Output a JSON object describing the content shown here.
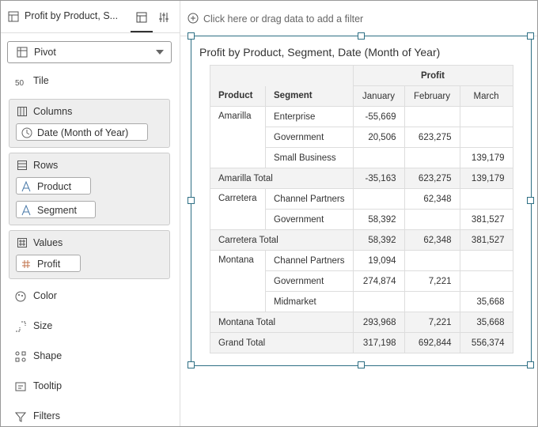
{
  "panel": {
    "tab_title": "Profit by Product, S...",
    "viz_type": "Pivot",
    "tile": "Tile",
    "columns": {
      "label": "Columns",
      "items": [
        "Date (Month of Year)"
      ]
    },
    "rows": {
      "label": "Rows",
      "items": [
        "Product",
        "Segment"
      ]
    },
    "values": {
      "label": "Values",
      "items": [
        "Profit"
      ]
    },
    "other": [
      "Color",
      "Size",
      "Shape",
      "Tooltip",
      "Filters"
    ]
  },
  "filter_bar": "Click here or drag data to add a filter",
  "pivot": {
    "title": "Profit by Product, Segment, Date (Month of Year)",
    "measure": "Profit",
    "row_headers": [
      "Product",
      "Segment"
    ],
    "months": [
      "January",
      "February",
      "March"
    ],
    "groups": [
      {
        "product": "Amarilla",
        "rows": [
          {
            "segment": "Enterprise",
            "values": [
              "-55,669",
              null,
              null
            ]
          },
          {
            "segment": "Government",
            "values": [
              "20,506",
              "623,275",
              null
            ]
          },
          {
            "segment": "Small Business",
            "values": [
              null,
              null,
              "139,179"
            ]
          }
        ],
        "total": {
          "label": "Amarilla Total",
          "values": [
            "-35,163",
            "623,275",
            "139,179"
          ]
        }
      },
      {
        "product": "Carretera",
        "rows": [
          {
            "segment": "Channel Partners",
            "values": [
              null,
              "62,348",
              null
            ]
          },
          {
            "segment": "Government",
            "values": [
              "58,392",
              null,
              "381,527"
            ]
          }
        ],
        "total": {
          "label": "Carretera Total",
          "values": [
            "58,392",
            "62,348",
            "381,527"
          ]
        }
      },
      {
        "product": "Montana",
        "rows": [
          {
            "segment": "Channel Partners",
            "values": [
              "19,094",
              null,
              null
            ]
          },
          {
            "segment": "Government",
            "values": [
              "274,874",
              "7,221",
              null
            ]
          },
          {
            "segment": "Midmarket",
            "values": [
              null,
              null,
              "35,668"
            ]
          }
        ],
        "total": {
          "label": "Montana Total",
          "values": [
            "293,968",
            "7,221",
            "35,668"
          ]
        }
      }
    ],
    "grand_total": {
      "label": "Grand Total",
      "values": [
        "317,198",
        "692,844",
        "556,374"
      ]
    }
  }
}
